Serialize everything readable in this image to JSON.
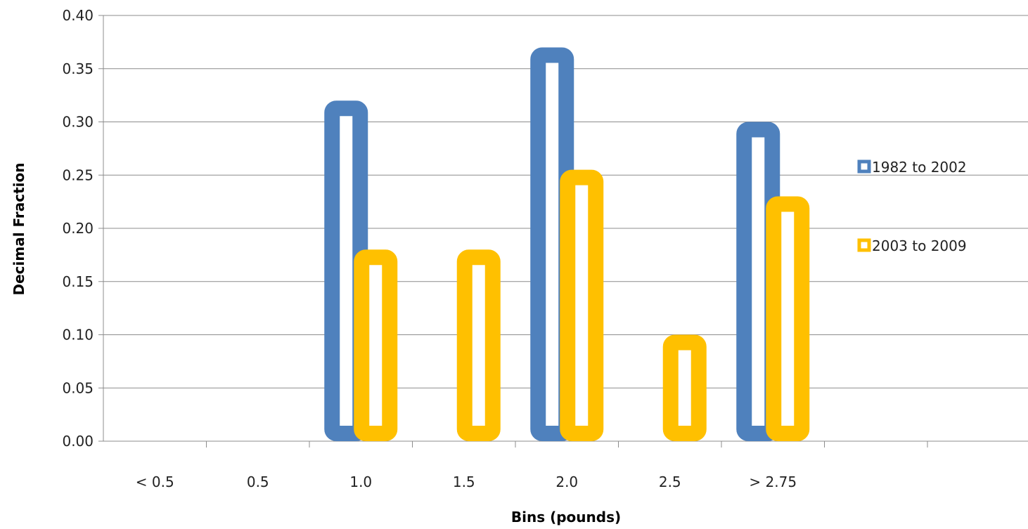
{
  "chart_data": {
    "type": "bar",
    "title": "",
    "xlabel": "Bins (pounds)",
    "ylabel": "Decimal Fraction",
    "categories": [
      "< 0.5",
      "0.5",
      "1.0",
      "1.5",
      "2.0",
      "2.5",
      "> 2.75",
      ""
    ],
    "y_tick_labels": [
      "0.00",
      "0.05",
      "0.10",
      "0.15",
      "0.20",
      "0.25",
      "0.30",
      "0.35",
      "0.40"
    ],
    "ylim": [
      0,
      0.4
    ],
    "grid": true,
    "legend_position": "right",
    "series": [
      {
        "name": "1982 to 2002",
        "color": "#4F81BD",
        "values": [
          0,
          0,
          0.32,
          0,
          0.37,
          0,
          0.3,
          0
        ]
      },
      {
        "name": "2003 to 2009",
        "color": "#FFC000",
        "values": [
          0,
          0,
          0.18,
          0.18,
          0.255,
          0.1,
          0.23,
          0
        ]
      }
    ]
  }
}
